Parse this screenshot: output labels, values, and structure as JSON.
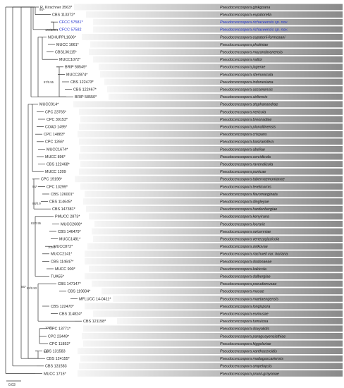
{
  "colors": {
    "band_light": "#f6f6f6",
    "band_dark": "#8a8a8a",
    "novel_text": "#2233cc",
    "branch": "#333333"
  },
  "scale_bar": {
    "label": "0.03"
  },
  "taxa": [
    {
      "strain": "R. Kirschner 3563*",
      "species": "Pseudocercospora ginkgoana"
    },
    {
      "strain": "CBS 113372*",
      "species": "Pseudocercospora eupatorella"
    },
    {
      "strain": "CFCC 57581*",
      "species": "Pseudocercospora richaceensis sp. nov.",
      "novel": true
    },
    {
      "strain": "CFCC 57582",
      "species": "Pseudocercospora richaceensis sp. nov.",
      "novel": true
    },
    {
      "strain": "NCHUPPL1606*",
      "species": "Pseudocercospora eupatorii-formosani"
    },
    {
      "strain": "MUCC 1661*",
      "species": "Pseudocercospora photiniae"
    },
    {
      "strain": "CBS136115*",
      "species": "Pseudocercospora mazandaranensis"
    },
    {
      "strain": "MUCC1072*",
      "species": "Pseudocercospora nattoi"
    },
    {
      "strain": "BRIP 58549*",
      "species": "Pseudocercospora jagerae"
    },
    {
      "strain": "MUCC2874*",
      "species": "Pseudocercospora stemonicola"
    },
    {
      "strain": "CBS 122473*",
      "species": "Pseudocercospora indonesiana"
    },
    {
      "strain": "CBS 122467*",
      "species": "Pseudocercospora assamensis"
    },
    {
      "strain": "BRIP 58550*",
      "species": "Pseudocercospora airliensis"
    },
    {
      "strain": "MUCC914*",
      "species": "Pseudocercospora stephanandrae"
    },
    {
      "strain": "CPC 23765*",
      "species": "Pseudocercospora nericola"
    },
    {
      "strain": "CPC 30153*",
      "species": "Pseudocercospora breonadiae"
    },
    {
      "strain": "COAD 1495*",
      "species": "Pseudocercospora planaltinensis"
    },
    {
      "strain": "CPC 14883*",
      "species": "Pseudocercospora crispans"
    },
    {
      "strain": "CPC 1266*",
      "species": "Pseudocercospora basiramifera"
    },
    {
      "strain": "MUCC1674*",
      "species": "Pseudocercospora abeliae"
    },
    {
      "strain": "MUCC 896*",
      "species": "Pseudocercospora cercidicola"
    },
    {
      "strain": "CBS 122468*",
      "species": "Pseudocercospora ravenalicola"
    },
    {
      "strain": "MUCC 1209",
      "species": "Pseudocercospora punicae"
    },
    {
      "strain": "CPC 19198*",
      "species": "Pseudocercospora tabernaemontanae"
    },
    {
      "strain": "CPC 13299*",
      "species": "Pseudocercospora tereticornis"
    },
    {
      "strain": "CBS 126001*",
      "species": "Pseudocercospora flavomarginata"
    },
    {
      "strain": "CBS 114645*",
      "species": "Pseudocercospora dingleyae"
    },
    {
      "strain": "CBS 147381*",
      "species": "Pseudocercospora hardenbergiae"
    },
    {
      "strain": "PMUCC 2873*",
      "species": "Pseudocercospora kenyirana"
    },
    {
      "strain": "MUCC2608*",
      "species": "Pseudocercospora locrarie"
    },
    {
      "strain": "CBS 146479*",
      "species": "Pseudocercospora avicenniae"
    },
    {
      "strain": "MUCC1481*",
      "species": "Pseudocercospora venezygiyzicola"
    },
    {
      "strain": "MUCC872*",
      "species": "Pseudocercospora zelkovae"
    },
    {
      "strain": "MUCC2141*",
      "species": "Pseudocercospora riachueli var. horiana"
    },
    {
      "strain": "CBS 114647*",
      "species": "Pseudocercospora dodonaeae"
    },
    {
      "strain": "MUCC 900*",
      "species": "Pseudocercospora kaki​cola"
    },
    {
      "strain": "TUA55*",
      "species": "Pseudocercospora dalbergiae"
    },
    {
      "strain": "CBS 147147*",
      "species": "Pseudocercospora pseudomusae"
    },
    {
      "strain": "CBS 119834*",
      "species": "Pseudocercospora musae"
    },
    {
      "strain": "MFLUCC 14-0411*",
      "species": "Pseudocercospora maetaengensis"
    },
    {
      "strain": "CBS 122470*",
      "species": "Pseudocercospora longispora"
    },
    {
      "strain": "CBS 114824*",
      "species": "Pseudocercospora eumusae"
    },
    {
      "strain": "CBS 121158*",
      "species": "Pseudocercospora tumulosa"
    },
    {
      "strain": "CPC 13771*",
      "species": "Pseudocercospora dovyalidis"
    },
    {
      "strain": "CPC 23449*",
      "species": "Pseudocercospora paraguayensisthiae"
    },
    {
      "strain": "CPC 11853*",
      "species": "Pseudocercospora kiggelariae"
    },
    {
      "strain": "CBS 131583",
      "species": "Pseudocercospora xanthocercidis"
    },
    {
      "strain": "CBS 124155*",
      "species": "Pseudocercospora madagascariensis"
    },
    {
      "strain": "CBS 131583",
      "species": "Pseudocercospora ampelopsis"
    },
    {
      "strain": "MUCC 1715*",
      "species": "Pseudocercospora prunii-grayanae"
    }
  ],
  "support_values": [
    "55/-",
    "100/1",
    "100/1",
    "97/0.55",
    "94/-",
    "88/0.9",
    "82/0.95",
    "55/-",
    "100/1",
    "82/0.93",
    "100/1",
    "94/-"
  ]
}
